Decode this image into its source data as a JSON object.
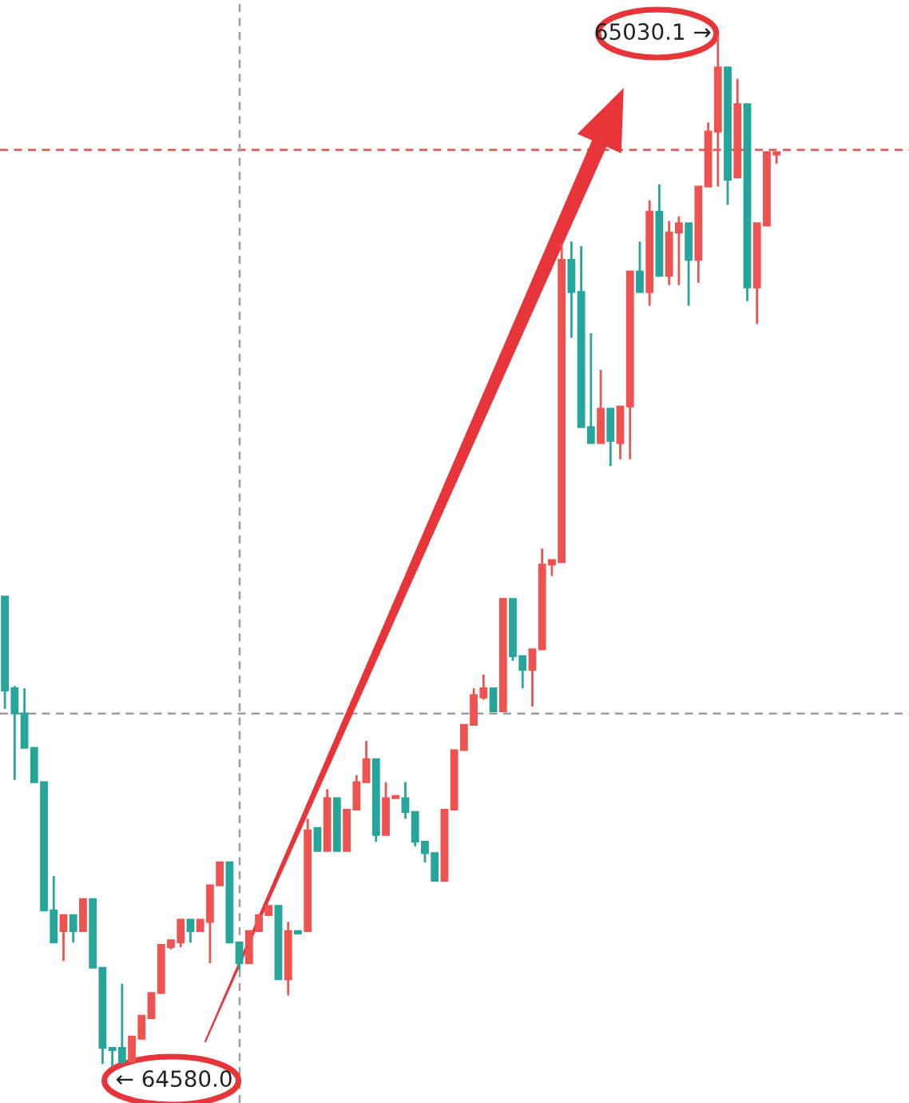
{
  "chart_data": {
    "type": "candlestick",
    "categories": [
      null,
      null,
      null,
      null,
      null,
      null,
      null,
      null,
      null,
      null,
      null,
      null,
      null,
      null,
      null,
      null,
      null,
      null,
      null,
      null,
      null,
      null,
      null,
      null,
      null,
      null,
      null,
      null,
      null,
      null,
      null,
      null,
      null,
      null,
      null,
      null,
      null,
      null,
      null,
      null,
      null,
      null,
      null,
      null,
      null,
      null,
      null,
      null,
      null,
      null,
      null,
      null,
      null,
      null,
      null,
      null,
      null,
      null,
      null,
      null,
      null,
      null,
      null,
      null,
      null,
      null,
      null,
      null,
      null,
      null,
      null,
      null,
      null,
      null,
      null,
      null,
      null,
      null,
      null,
      null
    ],
    "ohlc": [
      [
        64785,
        64785,
        64736,
        64744
      ],
      [
        64745,
        64746,
        64705,
        64734
      ],
      [
        64734,
        64745,
        64719,
        64719
      ],
      [
        64719,
        64719,
        64704,
        64704
      ],
      [
        64704,
        64704,
        64648,
        64648
      ],
      [
        64648,
        64663,
        64634,
        64634
      ],
      [
        64639,
        64646,
        64626,
        64646
      ],
      [
        64646,
        64646,
        64634,
        64639
      ],
      [
        64639,
        64653,
        64639,
        64653
      ],
      [
        64653,
        64653,
        64623,
        64623
      ],
      [
        64623,
        64623,
        64581,
        64588
      ],
      [
        64588,
        64588,
        64580.0,
        64587
      ],
      [
        64588,
        64616,
        64581,
        64582
      ],
      [
        64582,
        64593,
        64582,
        64593
      ],
      [
        64592,
        64602,
        64592,
        64602
      ],
      [
        64601,
        64612,
        64601,
        64612
      ],
      [
        64612,
        64633,
        64612,
        64633
      ],
      [
        64632,
        64635,
        64631,
        64635
      ],
      [
        64634,
        64644,
        64632,
        64644
      ],
      [
        64644,
        64644,
        64634,
        64639
      ],
      [
        64639,
        64644,
        64639,
        64644
      ],
      [
        64643,
        64659,
        64625,
        64659
      ],
      [
        64659,
        64669,
        64659,
        64669
      ],
      [
        64669,
        64669,
        64634,
        64634
      ],
      [
        64634,
        64634,
        64622,
        64625
      ],
      [
        64625,
        64639,
        64625,
        64639
      ],
      [
        64639,
        64646,
        64639,
        64646
      ],
      [
        64646,
        64650,
        64646,
        64650
      ],
      [
        64650,
        64650,
        64618,
        64618
      ],
      [
        64618,
        64643,
        64611,
        64639
      ],
      [
        64639,
        64639,
        64638,
        64638
      ],
      [
        64639,
        64688,
        64639,
        64683
      ],
      [
        64684,
        64684,
        64674,
        64674
      ],
      [
        64674,
        64701,
        64674,
        64697
      ],
      [
        64697,
        64697,
        64674,
        64674
      ],
      [
        64674,
        64692,
        64674,
        64692
      ],
      [
        64692,
        64707,
        64692,
        64704
      ],
      [
        64704,
        64722,
        64704,
        64714
      ],
      [
        64714,
        64714,
        64678,
        64681
      ],
      [
        64681,
        64704,
        64681,
        64697
      ],
      [
        64697,
        64698,
        64697,
        64698
      ],
      [
        64697,
        64704,
        64688,
        64691
      ],
      [
        64691,
        64691,
        64676,
        64678
      ],
      [
        64678,
        64678,
        64669,
        64673
      ],
      [
        64673,
        64673,
        64661,
        64661
      ],
      [
        64661,
        64692,
        64661,
        64692
      ],
      [
        64692,
        64718,
        64692,
        64718
      ],
      [
        64718,
        64729,
        64718,
        64729
      ],
      [
        64729,
        64745,
        64729,
        64742
      ],
      [
        64741,
        64751,
        64740,
        64745
      ],
      [
        64745,
        64745,
        64735,
        64735
      ],
      [
        64735,
        64784,
        64735,
        64784
      ],
      [
        64784,
        64784,
        64757,
        64759
      ],
      [
        64759,
        64759,
        64745,
        64753
      ],
      [
        64753,
        64762,
        64737,
        64762
      ],
      [
        64762,
        64806,
        64762,
        64799
      ],
      [
        64799,
        64801,
        64794,
        64801
      ],
      [
        64800,
        64939,
        64800,
        64932
      ],
      [
        64932,
        64940,
        64898,
        64918
      ],
      [
        64918,
        64938,
        64859,
        64859
      ],
      [
        64859,
        64900,
        64852,
        64852
      ],
      [
        64852,
        64884,
        64852,
        64867
      ],
      [
        64867,
        64867,
        64842,
        64853
      ],
      [
        64852,
        64868,
        64845,
        64868
      ],
      [
        64868,
        64927,
        64845,
        64927
      ],
      [
        64927,
        64940,
        64918,
        64918
      ],
      [
        64918,
        64958,
        64912,
        64953
      ],
      [
        64953,
        64965,
        64925,
        64925
      ],
      [
        64925,
        64949,
        64921,
        64944
      ],
      [
        64944,
        64951,
        64921,
        64948
      ],
      [
        64948,
        64948,
        64912,
        64932
      ],
      [
        64932,
        64964,
        64922,
        64964
      ],
      [
        64964,
        64992,
        64964,
        64988
      ],
      [
        64988,
        65030.1,
        64964,
        65016
      ],
      [
        65016,
        65016,
        64956,
        64967
      ],
      [
        64968,
        65011,
        64968,
        65000
      ],
      [
        65000,
        65000,
        64914,
        64920
      ],
      [
        64920,
        64948,
        64904,
        64948
      ],
      [
        64947,
        64979,
        64947,
        64979
      ],
      [
        64978,
        64979,
        64974,
        64979
      ]
    ],
    "colors": [
      "#26a69a",
      "#26a69a",
      "#26a69a",
      "#26a69a",
      "#26a69a",
      "#26a69a",
      "#ef5350",
      "#26a69a",
      "#ef5350",
      "#26a69a",
      "#26a69a",
      "#26a69a",
      "#26a69a",
      "#ef5350",
      "#ef5350",
      "#ef5350",
      "#ef5350",
      "#ef5350",
      "#ef5350",
      "#26a69a",
      "#ef5350",
      "#ef5350",
      "#ef5350",
      "#26a69a",
      "#26a69a",
      "#ef5350",
      "#ef5350",
      "#ef5350",
      "#26a69a",
      "#ef5350",
      "#26a69a",
      "#ef5350",
      "#26a69a",
      "#ef5350",
      "#26a69a",
      "#ef5350",
      "#ef5350",
      "#ef5350",
      "#26a69a",
      "#ef5350",
      "#ef5350",
      "#26a69a",
      "#26a69a",
      "#26a69a",
      "#26a69a",
      "#ef5350",
      "#ef5350",
      "#ef5350",
      "#ef5350",
      "#ef5350",
      "#26a69a",
      "#ef5350",
      "#26a69a",
      "#26a69a",
      "#ef5350",
      "#ef5350",
      "#ef5350",
      "#ef5350",
      "#26a69a",
      "#26a69a",
      "#26a69a",
      "#ef5350",
      "#26a69a",
      "#ef5350",
      "#ef5350",
      "#26a69a",
      "#ef5350",
      "#26a69a",
      "#ef5350",
      "#ef5350",
      "#26a69a",
      "#ef5350",
      "#ef5350",
      "#ef5350",
      "#26a69a",
      "#ef5350",
      "#26a69a",
      "#ef5350",
      "#ef5350",
      "#ef5350"
    ],
    "annotations": [
      "← 64580.0",
      "65030.1 →"
    ],
    "ref_lines": [
      {
        "axis": "y",
        "value": 64980,
        "color": "#d9534f",
        "line_style": "dashed"
      },
      {
        "axis": "y",
        "value": 64734,
        "color": "#9e9e9e",
        "line_style": "dashed"
      }
    ],
    "tick_labels": false,
    "grid": false,
    "legend": false
  }
}
